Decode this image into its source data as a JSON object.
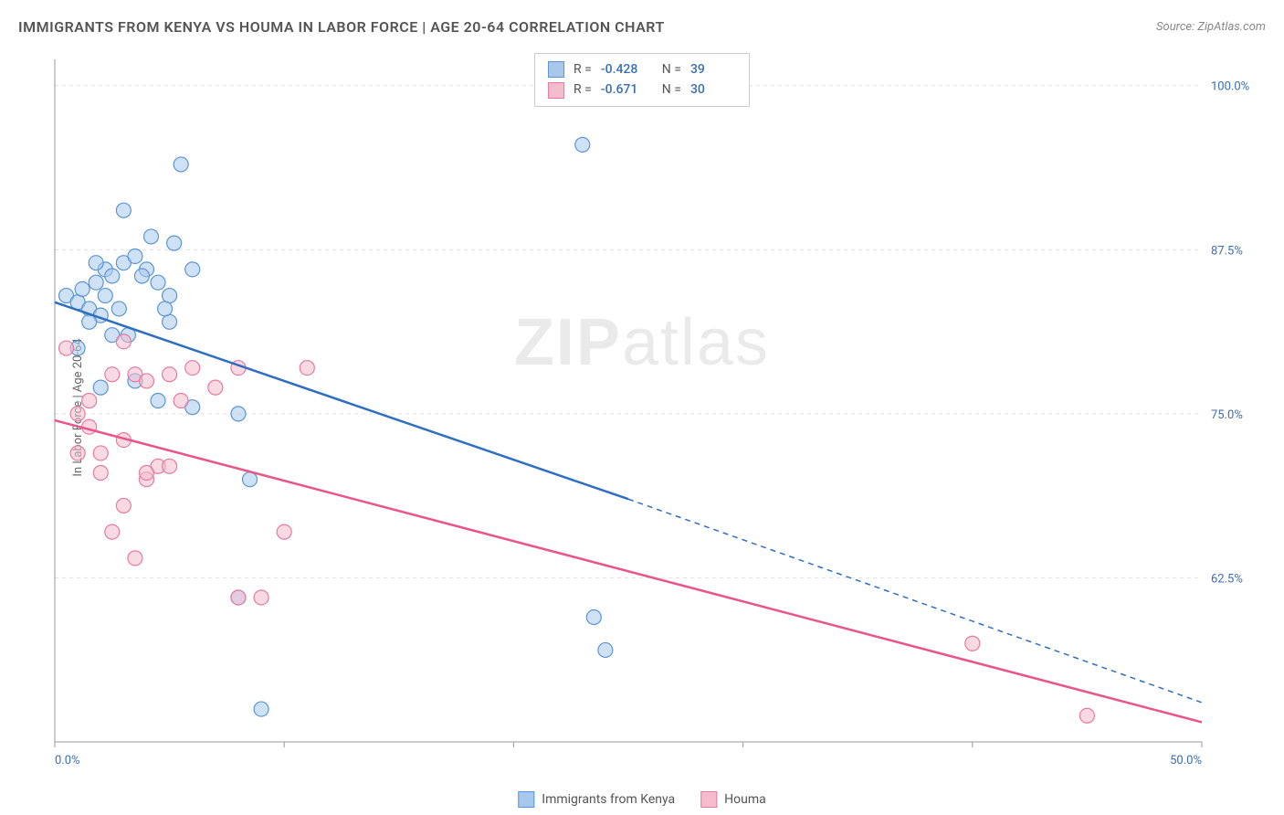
{
  "header": {
    "title": "IMMIGRANTS FROM KENYA VS HOUMA IN LABOR FORCE | AGE 20-64 CORRELATION CHART",
    "source": "Source: ZipAtlas.com"
  },
  "watermark": {
    "bold": "ZIP",
    "light": "atlas"
  },
  "axes": {
    "y_label": "In Labor Force | Age 20-64",
    "x_min": 0,
    "x_max": 50,
    "y_min": 50,
    "y_max": 102,
    "x_ticks": [
      0,
      10,
      20,
      30,
      40,
      50
    ],
    "x_tick_labels": [
      "0.0%",
      "",
      "",
      "",
      "",
      "50.0%"
    ],
    "y_gridlines": [
      62.5,
      75.0,
      87.5,
      100.0
    ],
    "y_tick_labels": [
      "62.5%",
      "75.0%",
      "87.5%",
      "100.0%"
    ]
  },
  "styling": {
    "grid_color": "#e0e0e0",
    "axis_color": "#999999",
    "tick_label_color": "#3b6db5",
    "background": "#ffffff",
    "marker_radius": 8,
    "marker_stroke_width": 1.2,
    "line_width": 2.5
  },
  "series": [
    {
      "name": "Immigrants from Kenya",
      "color_fill": "#a7c8ec",
      "color_stroke": "#5b96d4",
      "line_color": "#2f6fc1",
      "fill_opacity": 0.55,
      "R": "-0.428",
      "N": "39",
      "trend": {
        "x1": 0,
        "y1": 83.5,
        "x2_solid": 25,
        "y2_solid": 68.5,
        "x2": 50,
        "y2": 53.0
      },
      "points": [
        [
          0.5,
          84
        ],
        [
          1,
          83.5
        ],
        [
          1.2,
          84.5
        ],
        [
          1.5,
          83
        ],
        [
          1.8,
          85
        ],
        [
          2,
          82.5
        ],
        [
          2.2,
          86
        ],
        [
          2.5,
          85.5
        ],
        [
          3,
          86.5
        ],
        [
          3.2,
          81
        ],
        [
          3.5,
          87
        ],
        [
          4,
          86
        ],
        [
          4.2,
          88.5
        ],
        [
          4.5,
          85
        ],
        [
          5,
          84
        ],
        [
          5.2,
          88
        ],
        [
          3,
          90.5
        ],
        [
          5.5,
          94
        ],
        [
          2,
          77
        ],
        [
          3.5,
          77.5
        ],
        [
          4.5,
          76
        ],
        [
          6,
          75.5
        ],
        [
          8,
          75
        ],
        [
          8.5,
          70
        ],
        [
          5,
          82
        ],
        [
          6,
          86
        ],
        [
          8,
          61
        ],
        [
          9,
          52.5
        ],
        [
          23.5,
          59.5
        ],
        [
          24,
          57
        ],
        [
          23,
          95.5
        ],
        [
          1,
          80
        ],
        [
          2.8,
          83
        ],
        [
          1.5,
          82
        ],
        [
          2.2,
          84
        ],
        [
          3.8,
          85.5
        ],
        [
          4.8,
          83
        ],
        [
          1.8,
          86.5
        ],
        [
          2.5,
          81
        ]
      ]
    },
    {
      "name": "Houma",
      "color_fill": "#f4bccc",
      "color_stroke": "#e77aa0",
      "line_color": "#e9548a",
      "fill_opacity": 0.55,
      "R": "-0.671",
      "N": "30",
      "trend": {
        "x1": 0,
        "y1": 74.5,
        "x2_solid": 50,
        "y2_solid": 51.5,
        "x2": 50,
        "y2": 51.5
      },
      "points": [
        [
          0.5,
          80
        ],
        [
          1,
          75
        ],
        [
          1.5,
          74
        ],
        [
          2,
          72
        ],
        [
          2.5,
          78
        ],
        [
          3,
          73
        ],
        [
          3.5,
          78
        ],
        [
          4,
          77.5
        ],
        [
          4.5,
          71
        ],
        [
          5,
          78
        ],
        [
          5.5,
          76
        ],
        [
          6,
          78.5
        ],
        [
          7,
          77
        ],
        [
          8,
          78.5
        ],
        [
          11,
          78.5
        ],
        [
          2,
          70.5
        ],
        [
          3,
          68
        ],
        [
          4,
          70
        ],
        [
          1,
          72
        ],
        [
          2.5,
          66
        ],
        [
          3.5,
          64
        ],
        [
          4,
          70.5
        ],
        [
          5,
          71
        ],
        [
          8,
          61
        ],
        [
          9,
          61
        ],
        [
          10,
          66
        ],
        [
          3,
          80.5
        ],
        [
          40,
          57.5
        ],
        [
          45,
          52
        ],
        [
          1.5,
          76
        ]
      ]
    }
  ],
  "legend_bottom": [
    {
      "label": "Immigrants from Kenya",
      "fill": "#a7c8ec",
      "stroke": "#5b96d4"
    },
    {
      "label": "Houma",
      "fill": "#f4bccc",
      "stroke": "#e77aa0"
    }
  ]
}
